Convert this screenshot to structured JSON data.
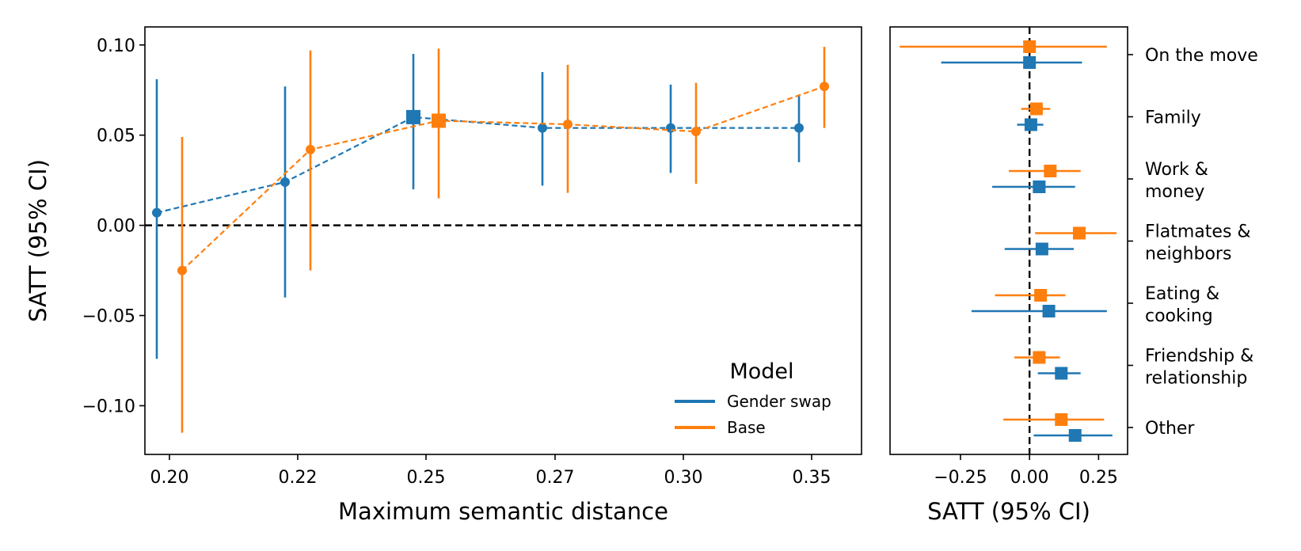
{
  "colors": {
    "gender_swap": "#1f77b4",
    "base": "#ff7f0e"
  },
  "chart_data": [
    {
      "type": "scatter",
      "panel": "left",
      "xlabel": "Maximum semantic distance",
      "ylabel": "SATT (95% CI)",
      "ylim": [
        -0.127,
        0.11
      ],
      "x_tick_labels": [
        "0.20",
        "0.22",
        "0.25",
        "0.27",
        "0.30",
        "0.35"
      ],
      "y_ticks": [
        0.1,
        0.05,
        0.0,
        -0.05,
        -0.1
      ],
      "y_tick_labels": [
        "0.10",
        "0.05",
        "0.00",
        "−0.05",
        "−0.10"
      ],
      "reference_line": 0,
      "legend": {
        "title": "Model",
        "position": "lower-right",
        "entries": [
          "Gender swap",
          "Base"
        ]
      },
      "series": [
        {
          "name": "Gender swap",
          "color_key": "gender_swap",
          "points": [
            {
              "x": "0.20",
              "value": 0.007,
              "lo": -0.074,
              "hi": 0.081,
              "marker": "circle"
            },
            {
              "x": "0.22",
              "value": 0.024,
              "lo": -0.04,
              "hi": 0.077,
              "marker": "circle"
            },
            {
              "x": "0.25",
              "value": 0.06,
              "lo": 0.02,
              "hi": 0.095,
              "marker": "square"
            },
            {
              "x": "0.27",
              "value": 0.054,
              "lo": 0.022,
              "hi": 0.085,
              "marker": "circle"
            },
            {
              "x": "0.30",
              "value": 0.054,
              "lo": 0.029,
              "hi": 0.078,
              "marker": "circle"
            },
            {
              "x": "0.35",
              "value": 0.054,
              "lo": 0.035,
              "hi": 0.072,
              "marker": "circle"
            }
          ]
        },
        {
          "name": "Base",
          "color_key": "base",
          "points": [
            {
              "x": "0.20",
              "value": -0.025,
              "lo": -0.115,
              "hi": 0.049,
              "marker": "circle"
            },
            {
              "x": "0.22",
              "value": 0.042,
              "lo": -0.025,
              "hi": 0.097,
              "marker": "circle"
            },
            {
              "x": "0.25",
              "value": 0.058,
              "lo": 0.015,
              "hi": 0.098,
              "marker": "square"
            },
            {
              "x": "0.27",
              "value": 0.056,
              "lo": 0.018,
              "hi": 0.089,
              "marker": "circle"
            },
            {
              "x": "0.30",
              "value": 0.052,
              "lo": 0.023,
              "hi": 0.079,
              "marker": "circle"
            },
            {
              "x": "0.35",
              "value": 0.077,
              "lo": 0.054,
              "hi": 0.099,
              "marker": "circle"
            }
          ]
        }
      ]
    },
    {
      "type": "scatter",
      "panel": "right",
      "orientation": "horizontal",
      "xlabel": "SATT (95% CI)",
      "xlim": [
        -0.505,
        0.355
      ],
      "x_ticks": [
        -0.25,
        0.0,
        0.25
      ],
      "x_tick_labels": [
        "−0.25",
        "0.00",
        "0.25"
      ],
      "reference_line": 0,
      "categories": [
        [
          "On the move"
        ],
        [
          "Family"
        ],
        [
          "Work &",
          "money"
        ],
        [
          "Flatmates &",
          "neighbors"
        ],
        [
          "Eating &",
          "cooking"
        ],
        [
          "Friendship &",
          "relationship"
        ],
        [
          "Other"
        ]
      ],
      "series": [
        {
          "name": "Base",
          "color_key": "base",
          "points": [
            {
              "value": 0.0,
              "lo": -0.47,
              "hi": 0.28
            },
            {
              "value": 0.025,
              "lo": -0.03,
              "hi": 0.075
            },
            {
              "value": 0.075,
              "lo": -0.075,
              "hi": 0.185
            },
            {
              "value": 0.18,
              "lo": 0.02,
              "hi": 0.315
            },
            {
              "value": 0.04,
              "lo": -0.125,
              "hi": 0.13
            },
            {
              "value": 0.035,
              "lo": -0.055,
              "hi": 0.11
            },
            {
              "value": 0.115,
              "lo": -0.095,
              "hi": 0.27
            }
          ]
        },
        {
          "name": "Gender swap",
          "color_key": "gender_swap",
          "points": [
            {
              "value": 0.0,
              "lo": -0.32,
              "hi": 0.19
            },
            {
              "value": 0.005,
              "lo": -0.045,
              "hi": 0.05
            },
            {
              "value": 0.035,
              "lo": -0.135,
              "hi": 0.165
            },
            {
              "value": 0.045,
              "lo": -0.09,
              "hi": 0.16
            },
            {
              "value": 0.07,
              "lo": -0.21,
              "hi": 0.28
            },
            {
              "value": 0.115,
              "lo": 0.03,
              "hi": 0.185
            },
            {
              "value": 0.165,
              "lo": 0.015,
              "hi": 0.3
            }
          ]
        }
      ]
    }
  ]
}
